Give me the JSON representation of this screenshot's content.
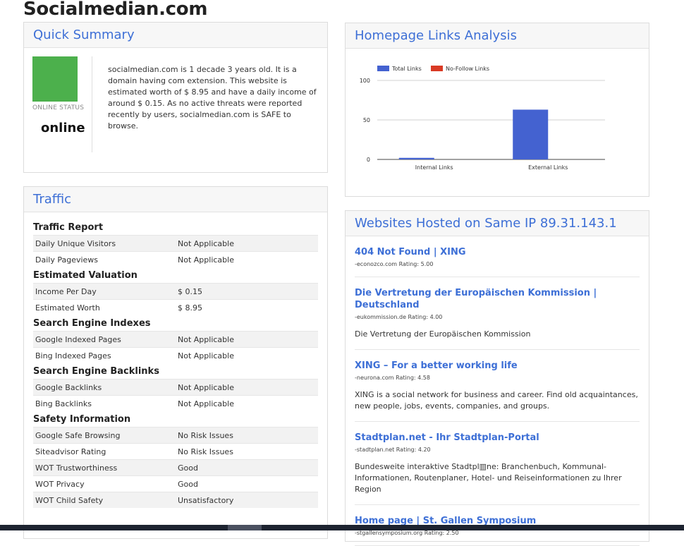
{
  "site_title": "Socialmedian.com",
  "summary": {
    "header": "Quick Summary",
    "status_label": "ONLINE STATUS",
    "status_value": "online",
    "status_color": "#4cb04c",
    "text": "socialmedian.com is 1 decade 3 years old. It is a domain having com extension. This website is estimated worth of $ 8.95 and have a daily income of around $ 0.15. As no active threats were reported recently by users, socialmedian.com is SAFE to browse."
  },
  "traffic": {
    "header": "Traffic",
    "sections": [
      {
        "title": "Traffic Report",
        "rows": [
          [
            "Daily Unique Visitors",
            "Not Applicable"
          ],
          [
            "Daily Pageviews",
            "Not Applicable"
          ]
        ]
      },
      {
        "title": "Estimated Valuation",
        "rows": [
          [
            "Income Per Day",
            "$ 0.15"
          ],
          [
            "Estimated Worth",
            "$ 8.95"
          ]
        ]
      },
      {
        "title": "Search Engine Indexes",
        "rows": [
          [
            "Google Indexed Pages",
            "Not Applicable"
          ],
          [
            "Bing Indexed Pages",
            "Not Applicable"
          ]
        ]
      },
      {
        "title": "Search Engine Backlinks",
        "rows": [
          [
            "Google Backlinks",
            "Not Applicable"
          ],
          [
            "Bing Backlinks",
            "Not Applicable"
          ]
        ]
      },
      {
        "title": "Safety Information",
        "rows": [
          [
            "Google Safe Browsing",
            "No Risk Issues"
          ],
          [
            "Siteadvisor Rating",
            "No Risk Issues"
          ],
          [
            "WOT Trustworthiness",
            "Good"
          ],
          [
            "WOT Privacy",
            "Good"
          ],
          [
            "WOT Child Safety",
            "Unsatisfactory"
          ]
        ]
      }
    ]
  },
  "links": {
    "header": "Homepage Links Analysis"
  },
  "chart_data": {
    "type": "bar",
    "categories": [
      "Internal Links",
      "External Links"
    ],
    "series": [
      {
        "name": "Total Links",
        "color": "#4462d0",
        "values": [
          2,
          63
        ]
      },
      {
        "name": "No-Follow Links",
        "color": "#d93a24",
        "values": [
          0,
          0
        ]
      }
    ],
    "yticks": [
      0,
      50,
      100
    ],
    "ylim": [
      0,
      100
    ],
    "grid": true,
    "legend": "top-left"
  },
  "hosted": {
    "header": "Websites Hosted on Same IP 89.31.143.1",
    "items": [
      {
        "title": "404 Not Found | XING",
        "meta": "-econozco.com Rating: 5.00",
        "desc": ""
      },
      {
        "title": "Die Vertretung der Europäischen Kommission | Deutschland",
        "meta": "-eukommission.de Rating: 4.00",
        "desc": "Die Vertretung der Europäischen Kommission"
      },
      {
        "title": "XING – For a better working life",
        "meta": "-neurona.com Rating: 4.58",
        "desc": "XING is a social network for business and career. Find old acquaintances, new people, jobs, events, companies, and groups."
      },
      {
        "title": "Stadtplan.net - Ihr Stadtplan-Portal",
        "meta": "-stadtplan.net Rating: 4.20",
        "desc": "Bundesweite interaktive Stadtpl▥ne: Branchenbuch, Kommunal-Informationen, Routenplaner, Hotel- und Reiseinformationen zu Ihrer Region"
      },
      {
        "title": "Home page | St. Gallen Symposium",
        "meta": "-stgallensymposium.org Rating: 2.50",
        "desc": ""
      }
    ]
  }
}
